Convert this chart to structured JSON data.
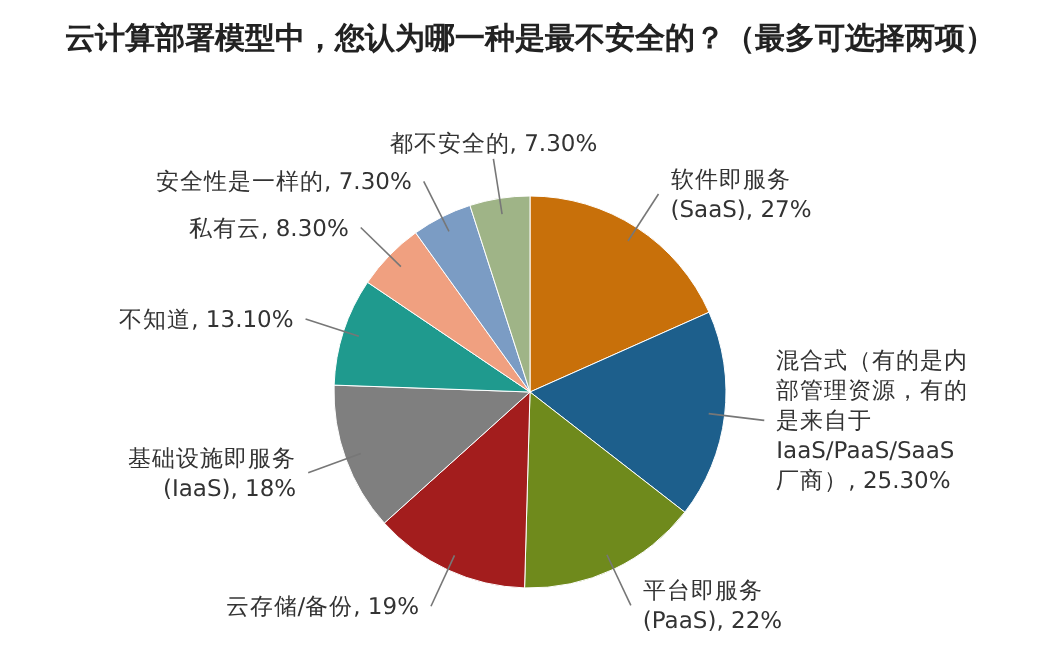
{
  "chart_data": {
    "type": "pie",
    "title": "云计算部署模型中，您认为哪一种是最不安全的？（最多可选择两项）",
    "categories": [
      "软件即服务 (SaaS)",
      "混合式（有的是内部管理资源，有的是来自于IaaS/PaaS/SaaS厂商）",
      "平台即服务 (PaaS)",
      "云存储/备份",
      "基础设施即服务 (IaaS)",
      "不知道",
      "私有云",
      "安全性是一样的",
      "都不安全的"
    ],
    "values": [
      27,
      25.3,
      22,
      19,
      18,
      13.1,
      8.3,
      7.3,
      7.3
    ],
    "value_labels": [
      "27%",
      "25.30%",
      "22%",
      "19%",
      "18%",
      "13.10%",
      "8.30%",
      "7.30%",
      "7.30%"
    ],
    "colors": [
      "#c8700a",
      "#1d5f8c",
      "#6f8a1c",
      "#a31d1d",
      "#7f7f7f",
      "#1f9a8e",
      "#f0a080",
      "#7b9cc4",
      "#9fb487"
    ]
  }
}
